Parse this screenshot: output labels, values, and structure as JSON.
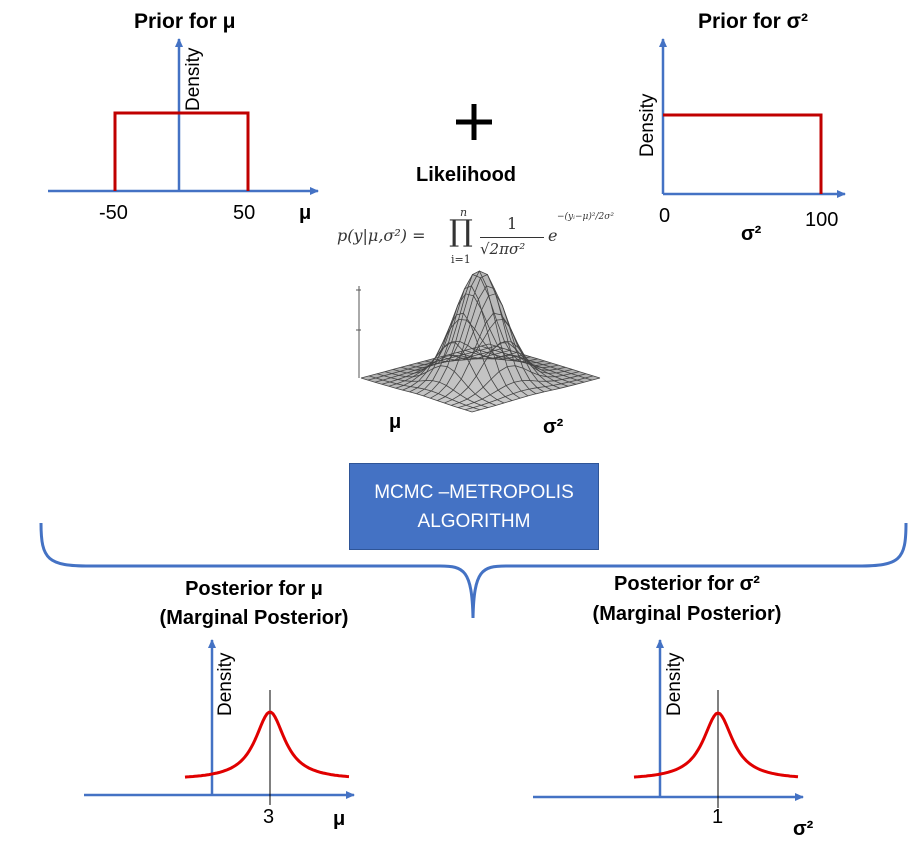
{
  "prior_mu": {
    "title": "Prior for μ",
    "ylabel": "Density",
    "xlabel": "μ",
    "ticks": [
      "-50",
      "50"
    ]
  },
  "plus_sign": "+",
  "prior_sigma": {
    "title": "Prior for σ²",
    "ylabel": "Density",
    "xlabel": "σ²",
    "ticks": [
      "0",
      "100"
    ]
  },
  "likelihood": {
    "title": "Likelihood",
    "formula_lhs": "p(y|μ,σ²) =",
    "formula_prod": "∏",
    "formula_prod_top": "n",
    "formula_prod_bottom": "i=1",
    "formula_frac_num": "1",
    "formula_frac_den": "√2πσ²",
    "formula_exp_base": "e",
    "formula_exp": "−(yᵢ−μ)²/2σ²",
    "surface_xlabel": "μ",
    "surface_ylabel": "σ²"
  },
  "mcmc_box": {
    "line1": "MCMC –METROPOLIS",
    "line2": "ALGORITHM"
  },
  "posterior_mu": {
    "title_line1": "Posterior for μ",
    "title_line2": "(Marginal Posterior)",
    "ylabel": "Density",
    "xlabel": "μ",
    "peak_tick": "3"
  },
  "posterior_sigma": {
    "title_line1": "Posterior for σ²",
    "title_line2": "(Marginal Posterior)",
    "ylabel": "Density",
    "xlabel": "σ²",
    "peak_tick": "1"
  },
  "colors": {
    "axis": "#4472c4",
    "density_line": "#c00000",
    "posterior_curve": "#e00000",
    "box_fill": "#4472c4"
  }
}
